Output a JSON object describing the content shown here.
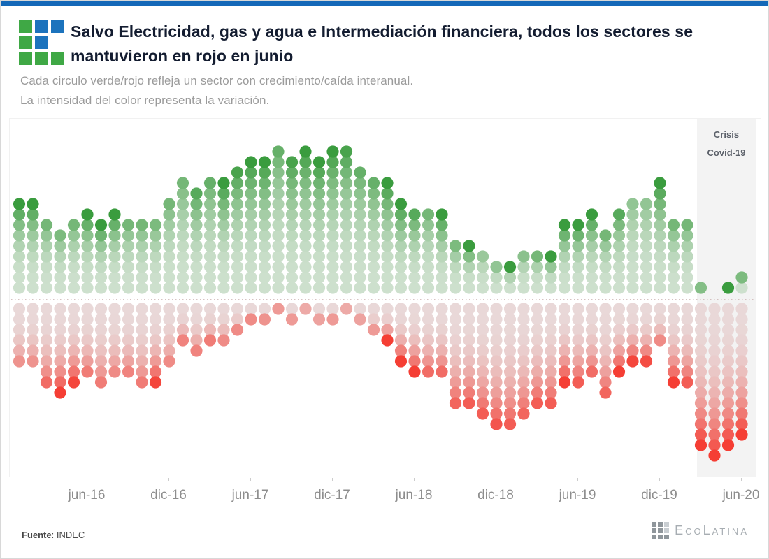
{
  "page": {
    "top_bar_color": "#1468b8",
    "logo": {
      "green": "#3fa845",
      "blue": "#1c73bd",
      "grid": [
        [
          "green",
          "blue",
          "blue"
        ],
        [
          "green",
          "blue",
          "none"
        ],
        [
          "green",
          "green",
          "green"
        ]
      ]
    }
  },
  "header": {
    "title_lines": [
      "Salvo Electricidad, gas y agua e Intermediación financiera, todos los sectores se",
      "mantuvieron en rojo en junio"
    ],
    "subtitle_line1": "Cada circulo verde/rojo refleja un sector con crecimiento/caída interanual.",
    "subtitle_line2": "La intensidad del color representa la variación."
  },
  "chart_data": {
    "type": "dot-matrix",
    "description": "Monthly columns of stacked dots: green dots above the dotted divider = sectors with year-on-year growth, red dots below = sectors with year-on-year fall. Color intensity encodes the size of the variation.",
    "annotation": {
      "line1": "Crisis",
      "line2": "Covid-19"
    },
    "x_tick_labels": [
      "jun-16",
      "dic-16",
      "jun-17",
      "dic-17",
      "jun-18",
      "dic-18",
      "jun-19",
      "dic-19",
      "jun-20"
    ],
    "colors": {
      "green_pale": "#cde0cd",
      "green_dark": "#3a9c3e",
      "red_pale": "#e9d8d8",
      "red_bright": "#f53e34",
      "divider": "#c9aeae",
      "covid_band": "#f3f3f3"
    },
    "columns": [
      {
        "month": "ene-16",
        "up": 9,
        "up_max": 1.0,
        "down": 6,
        "down_max": 0.45
      },
      {
        "month": "feb-16",
        "up": 9,
        "up_max": 1.0,
        "down": 6,
        "down_max": 0.45
      },
      {
        "month": "mar-16",
        "up": 7,
        "up_max": 0.6,
        "down": 8,
        "down_max": 0.7
      },
      {
        "month": "abr-16",
        "up": 6,
        "up_max": 0.55,
        "down": 9,
        "down_max": 1.0
      },
      {
        "month": "may-16",
        "up": 7,
        "up_max": 0.6,
        "down": 8,
        "down_max": 0.95
      },
      {
        "month": "jun-16",
        "up": 8,
        "up_max": 1.0,
        "down": 7,
        "down_max": 0.6
      },
      {
        "month": "jul-16",
        "up": 7,
        "up_max": 1.0,
        "down": 8,
        "down_max": 0.6
      },
      {
        "month": "ago-16",
        "up": 8,
        "up_max": 1.0,
        "down": 7,
        "down_max": 0.5
      },
      {
        "month": "sep-16",
        "up": 7,
        "up_max": 0.6,
        "down": 7,
        "down_max": 0.55
      },
      {
        "month": "oct-16",
        "up": 7,
        "up_max": 0.6,
        "down": 8,
        "down_max": 0.6
      },
      {
        "month": "nov-16",
        "up": 7,
        "up_max": 0.55,
        "down": 8,
        "down_max": 0.95
      },
      {
        "month": "dic-16",
        "up": 9,
        "up_max": 0.6,
        "down": 6,
        "down_max": 0.5
      },
      {
        "month": "ene-17",
        "up": 11,
        "up_max": 0.6,
        "down": 4,
        "down_max": 0.55
      },
      {
        "month": "feb-17",
        "up": 10,
        "up_max": 0.8,
        "down": 5,
        "down_max": 0.55
      },
      {
        "month": "mar-17",
        "up": 11,
        "up_max": 0.7,
        "down": 4,
        "down_max": 0.6
      },
      {
        "month": "abr-17",
        "up": 11,
        "up_max": 1.0,
        "down": 4,
        "down_max": 0.5
      },
      {
        "month": "may-17",
        "up": 12,
        "up_max": 0.9,
        "down": 3,
        "down_max": 0.5
      },
      {
        "month": "jun-17",
        "up": 13,
        "up_max": 1.0,
        "down": 2,
        "down_max": 0.5
      },
      {
        "month": "jul-17",
        "up": 13,
        "up_max": 1.0,
        "down": 2,
        "down_max": 0.45
      },
      {
        "month": "ago-17",
        "up": 14,
        "up_max": 0.7,
        "down": 1,
        "down_max": 0.4
      },
      {
        "month": "sep-17",
        "up": 13,
        "up_max": 0.9,
        "down": 2,
        "down_max": 0.4
      },
      {
        "month": "oct-17",
        "up": 14,
        "up_max": 1.0,
        "down": 1,
        "down_max": 0.3
      },
      {
        "month": "nov-17",
        "up": 13,
        "up_max": 1.0,
        "down": 2,
        "down_max": 0.35
      },
      {
        "month": "dic-17",
        "up": 14,
        "up_max": 1.0,
        "down": 2,
        "down_max": 0.4
      },
      {
        "month": "ene-18",
        "up": 14,
        "up_max": 0.9,
        "down": 1,
        "down_max": 0.3
      },
      {
        "month": "feb-18",
        "up": 12,
        "up_max": 0.7,
        "down": 2,
        "down_max": 0.35
      },
      {
        "month": "mar-18",
        "up": 11,
        "up_max": 0.7,
        "down": 3,
        "down_max": 0.4
      },
      {
        "month": "abr-18",
        "up": 11,
        "up_max": 1.0,
        "down": 4,
        "down_max": 1.0
      },
      {
        "month": "may-18",
        "up": 9,
        "up_max": 1.0,
        "down": 6,
        "down_max": 1.0
      },
      {
        "month": "jun-18",
        "up": 8,
        "up_max": 0.8,
        "down": 7,
        "down_max": 1.0
      },
      {
        "month": "jul-18",
        "up": 8,
        "up_max": 0.6,
        "down": 7,
        "down_max": 0.7
      },
      {
        "month": "ago-18",
        "up": 8,
        "up_max": 1.0,
        "down": 7,
        "down_max": 0.7
      },
      {
        "month": "sep-18",
        "up": 5,
        "up_max": 0.55,
        "down": 10,
        "down_max": 0.75
      },
      {
        "month": "oct-18",
        "up": 5,
        "up_max": 1.0,
        "down": 10,
        "down_max": 0.8
      },
      {
        "month": "nov-18",
        "up": 4,
        "up_max": 0.35,
        "down": 11,
        "down_max": 0.8
      },
      {
        "month": "dic-18",
        "up": 3,
        "up_max": 0.4,
        "down": 12,
        "down_max": 0.85
      },
      {
        "month": "ene-19",
        "up": 3,
        "up_max": 1.0,
        "down": 12,
        "down_max": 0.8
      },
      {
        "month": "feb-19",
        "up": 4,
        "up_max": 0.45,
        "down": 11,
        "down_max": 0.75
      },
      {
        "month": "mar-19",
        "up": 4,
        "up_max": 0.6,
        "down": 10,
        "down_max": 0.8
      },
      {
        "month": "abr-19",
        "up": 4,
        "up_max": 1.0,
        "down": 10,
        "down_max": 0.8
      },
      {
        "month": "may-19",
        "up": 7,
        "up_max": 1.0,
        "down": 8,
        "down_max": 1.0
      },
      {
        "month": "jun-19",
        "up": 7,
        "up_max": 1.0,
        "down": 8,
        "down_max": 0.8
      },
      {
        "month": "jul-19",
        "up": 8,
        "up_max": 1.0,
        "down": 7,
        "down_max": 0.7
      },
      {
        "month": "ago-19",
        "up": 6,
        "up_max": 0.6,
        "down": 9,
        "down_max": 0.75
      },
      {
        "month": "sep-19",
        "up": 8,
        "up_max": 0.8,
        "down": 7,
        "down_max": 1.0
      },
      {
        "month": "oct-19",
        "up": 9,
        "up_max": 0.4,
        "down": 6,
        "down_max": 0.95
      },
      {
        "month": "nov-19",
        "up": 9,
        "up_max": 0.4,
        "down": 6,
        "down_max": 0.9
      },
      {
        "month": "dic-19",
        "up": 11,
        "up_max": 1.0,
        "down": 4,
        "down_max": 0.5
      },
      {
        "month": "ene-20",
        "up": 7,
        "up_max": 0.6,
        "down": 8,
        "down_max": 1.0
      },
      {
        "month": "feb-20",
        "up": 7,
        "up_max": 0.6,
        "down": 8,
        "down_max": 0.8
      },
      {
        "month": "mar-20",
        "up": 1,
        "up_max": 0.5,
        "down": 14,
        "down_max": 1.0
      },
      {
        "month": "abr-20",
        "up": 0,
        "up_max": 0.0,
        "down": 15,
        "down_max": 1.0
      },
      {
        "month": "may-20",
        "up": 1,
        "up_max": 1.0,
        "down": 14,
        "down_max": 1.0
      },
      {
        "month": "jun-20",
        "up": 2,
        "up_max": 0.55,
        "down": 13,
        "down_max": 1.0
      }
    ]
  },
  "footer": {
    "source_label": "Fuente",
    "source_value": "INDEC",
    "brand": "EcoLatina"
  }
}
